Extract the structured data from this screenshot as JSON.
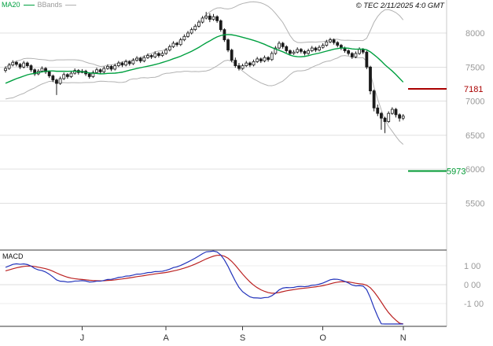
{
  "legend": {
    "ma20": "MA20",
    "bbands": "BBands"
  },
  "copyright": "© TEC 2/11/2025 4:0 GMT",
  "macd_label": "MACD",
  "colors": {
    "grid": "#e0e0e0",
    "axis": "#3a3a3a",
    "border": "#c8c8c8",
    "candle": "#1a1a1a",
    "ma20": "#00a040",
    "bband": "#b2b2b2",
    "macd_line": "#2233bb",
    "signal_line": "#bb2222",
    "level_red": "#aa0000",
    "level_green": "#009933",
    "label_gray": "#999999",
    "month_label": "#333333"
  },
  "chart_data": {
    "type": "candlestick",
    "panels": [
      "price",
      "macd"
    ],
    "indicators": [
      "MA20",
      "BBands(20,2)",
      "MACD(12,26,9)"
    ],
    "price_axis": {
      "ticks": [
        8000,
        7500,
        7000,
        6500,
        6000,
        5500
      ],
      "ylim": [
        5450,
        8450
      ],
      "levels": [
        {
          "value": 7181,
          "color": "red"
        },
        {
          "value": 5973,
          "color": "green"
        }
      ]
    },
    "x_axis": {
      "labels": [
        "J",
        "A",
        "S",
        "O",
        "N"
      ],
      "month_start_indices": [
        21,
        44,
        65,
        87,
        109
      ]
    },
    "macd_axis": {
      "labels": [
        "1 00",
        "0 00",
        "-1 00"
      ],
      "values": [
        100,
        0,
        -100
      ],
      "ylim": [
        -210,
        175
      ]
    },
    "pre_closes": [
      7050,
      7080,
      7110,
      7090,
      7140,
      7170,
      7150,
      7200,
      7230,
      7210,
      7250,
      7290,
      7270,
      7310,
      7350,
      7330,
      7370,
      7400,
      7380,
      7440
    ],
    "candles": [
      [
        7450,
        7510,
        7420,
        7480
      ],
      [
        7480,
        7560,
        7460,
        7530
      ],
      [
        7530,
        7600,
        7510,
        7570
      ],
      [
        7570,
        7590,
        7510,
        7540
      ],
      [
        7540,
        7560,
        7470,
        7500
      ],
      [
        7500,
        7590,
        7480,
        7560
      ],
      [
        7560,
        7580,
        7490,
        7520
      ],
      [
        7520,
        7540,
        7430,
        7460
      ],
      [
        7460,
        7480,
        7370,
        7400
      ],
      [
        7400,
        7470,
        7380,
        7440
      ],
      [
        7440,
        7510,
        7420,
        7480
      ],
      [
        7480,
        7500,
        7400,
        7430
      ],
      [
        7430,
        7450,
        7340,
        7370
      ],
      [
        7370,
        7390,
        7280,
        7310
      ],
      [
        7310,
        7330,
        7090,
        7260
      ],
      [
        7260,
        7360,
        7240,
        7330
      ],
      [
        7330,
        7420,
        7310,
        7390
      ],
      [
        7390,
        7410,
        7330,
        7360
      ],
      [
        7360,
        7440,
        7340,
        7410
      ],
      [
        7410,
        7480,
        7390,
        7450
      ],
      [
        7450,
        7470,
        7390,
        7420
      ],
      [
        7420,
        7470,
        7410,
        7440
      ],
      [
        7440,
        7460,
        7370,
        7400
      ],
      [
        7400,
        7420,
        7330,
        7360
      ],
      [
        7360,
        7450,
        7340,
        7420
      ],
      [
        7420,
        7490,
        7400,
        7460
      ],
      [
        7460,
        7480,
        7400,
        7430
      ],
      [
        7430,
        7510,
        7410,
        7480
      ],
      [
        7480,
        7540,
        7460,
        7510
      ],
      [
        7510,
        7530,
        7440,
        7470
      ],
      [
        7470,
        7550,
        7450,
        7520
      ],
      [
        7520,
        7590,
        7500,
        7560
      ],
      [
        7560,
        7580,
        7500,
        7530
      ],
      [
        7530,
        7610,
        7510,
        7580
      ],
      [
        7580,
        7600,
        7520,
        7550
      ],
      [
        7550,
        7630,
        7530,
        7600
      ],
      [
        7600,
        7660,
        7580,
        7630
      ],
      [
        7630,
        7650,
        7560,
        7590
      ],
      [
        7590,
        7670,
        7570,
        7640
      ],
      [
        7640,
        7700,
        7620,
        7670
      ],
      [
        7670,
        7690,
        7620,
        7650
      ],
      [
        7650,
        7730,
        7630,
        7700
      ],
      [
        7700,
        7720,
        7640,
        7670
      ],
      [
        7670,
        7730,
        7650,
        7700
      ],
      [
        7700,
        7780,
        7680,
        7750
      ],
      [
        7750,
        7830,
        7730,
        7800
      ],
      [
        7800,
        7880,
        7780,
        7850
      ],
      [
        7850,
        7870,
        7800,
        7830
      ],
      [
        7830,
        7930,
        7810,
        7900
      ],
      [
        7900,
        7980,
        7880,
        7950
      ],
      [
        7950,
        8030,
        7930,
        8000
      ],
      [
        8000,
        8080,
        7980,
        8050
      ],
      [
        8050,
        8130,
        8030,
        8100
      ],
      [
        8100,
        8190,
        8080,
        8160
      ],
      [
        8160,
        8250,
        8140,
        8220
      ],
      [
        8220,
        8310,
        8200,
        8250
      ],
      [
        8250,
        8290,
        8160,
        8200
      ],
      [
        8200,
        8280,
        8180,
        8240
      ],
      [
        8240,
        8260,
        8150,
        8180
      ],
      [
        8180,
        8200,
        8020,
        8050
      ],
      [
        8050,
        8070,
        7870,
        7900
      ],
      [
        7900,
        7920,
        7720,
        7750
      ],
      [
        7750,
        7770,
        7570,
        7600
      ],
      [
        7600,
        7640,
        7490,
        7520
      ],
      [
        7520,
        7560,
        7450,
        7480
      ],
      [
        7480,
        7550,
        7460,
        7520
      ],
      [
        7520,
        7590,
        7500,
        7560
      ],
      [
        7560,
        7580,
        7500,
        7530
      ],
      [
        7530,
        7610,
        7510,
        7580
      ],
      [
        7580,
        7650,
        7560,
        7620
      ],
      [
        7620,
        7640,
        7560,
        7590
      ],
      [
        7590,
        7670,
        7570,
        7640
      ],
      [
        7640,
        7660,
        7580,
        7610
      ],
      [
        7610,
        7730,
        7590,
        7700
      ],
      [
        7700,
        7810,
        7680,
        7780
      ],
      [
        7780,
        7880,
        7760,
        7850
      ],
      [
        7850,
        7870,
        7770,
        7800
      ],
      [
        7800,
        7820,
        7710,
        7740
      ],
      [
        7740,
        7760,
        7670,
        7700
      ],
      [
        7700,
        7750,
        7680,
        7720
      ],
      [
        7720,
        7790,
        7700,
        7760
      ],
      [
        7760,
        7780,
        7700,
        7730
      ],
      [
        7730,
        7750,
        7670,
        7700
      ],
      [
        7700,
        7770,
        7680,
        7740
      ],
      [
        7740,
        7810,
        7720,
        7780
      ],
      [
        7780,
        7800,
        7720,
        7750
      ],
      [
        7750,
        7820,
        7730,
        7790
      ],
      [
        7790,
        7850,
        7770,
        7820
      ],
      [
        7820,
        7900,
        7800,
        7870
      ],
      [
        7870,
        7930,
        7850,
        7900
      ],
      [
        7900,
        7920,
        7830,
        7860
      ],
      [
        7860,
        7880,
        7790,
        7820
      ],
      [
        7820,
        7840,
        7750,
        7780
      ],
      [
        7780,
        7800,
        7710,
        7740
      ],
      [
        7740,
        7760,
        7670,
        7700
      ],
      [
        7700,
        7720,
        7620,
        7650
      ],
      [
        7650,
        7730,
        7630,
        7700
      ],
      [
        7700,
        7790,
        7680,
        7760
      ],
      [
        7760,
        7780,
        7690,
        7720
      ],
      [
        7720,
        7740,
        7470,
        7500
      ],
      [
        7500,
        7520,
        7100,
        7150
      ],
      [
        7150,
        7170,
        6850,
        6900
      ],
      [
        6900,
        6950,
        6780,
        6820
      ],
      [
        6820,
        6840,
        6580,
        6750
      ],
      [
        6750,
        6770,
        6530,
        6700
      ],
      [
        6700,
        6850,
        6680,
        6820
      ],
      [
        6820,
        6910,
        6800,
        6880
      ],
      [
        6880,
        6900,
        6760,
        6800
      ],
      [
        6800,
        6820,
        6700,
        6750
      ],
      [
        6750,
        6810,
        6720,
        6780
      ]
    ]
  }
}
